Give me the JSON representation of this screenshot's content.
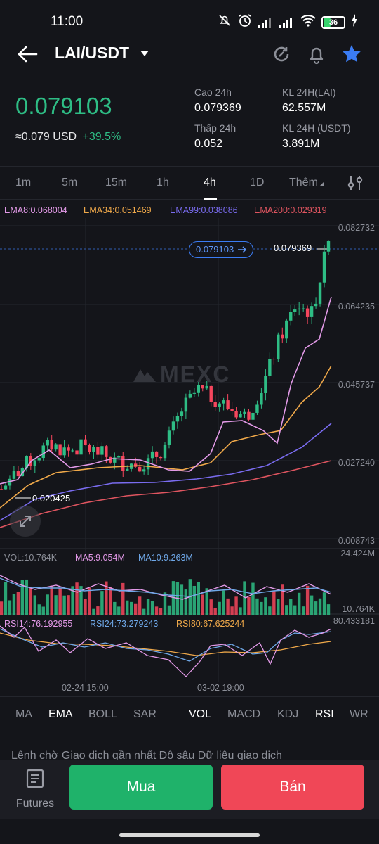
{
  "status_bar": {
    "time": "11:00",
    "battery": "36",
    "icons": [
      "mute-icon",
      "alarm-icon",
      "signal-icon",
      "signal-icon",
      "wifi-icon",
      "battery-icon",
      "charging-icon"
    ]
  },
  "header": {
    "pair": "LAI/USDT",
    "icons": [
      "back-arrow-icon",
      "chevron-down-icon",
      "refresh-icon",
      "bell-icon",
      "star-icon"
    ],
    "star_color": "#3b7cf3"
  },
  "price": {
    "last": "0.079103",
    "usd_approx": "≈0.079 USD",
    "change": "+39.5%",
    "up_color": "#2ebd85",
    "stats": {
      "high_label": "Cao 24h",
      "high_value": "0.079369",
      "low_label": "Thấp 24h",
      "low_value": "0.052",
      "vol_lai_label": "KL 24H(LAI)",
      "vol_lai_value": "62.557M",
      "vol_usdt_label": "KL 24H (USDT)",
      "vol_usdt_value": "3.891M"
    }
  },
  "intervals": {
    "items": [
      "1m",
      "5m",
      "15m",
      "1h",
      "4h",
      "1D",
      "Thêm"
    ],
    "active": "4h",
    "settings_icon": "sliders-icon"
  },
  "chart": {
    "ema_legend": [
      {
        "text": "EMA8:0.068004",
        "color": "#e39ae8"
      },
      {
        "text": "EMA34:0.051469",
        "color": "#f0a94a"
      },
      {
        "text": "EMA99:0.038086",
        "color": "#7a6cf0"
      },
      {
        "text": "EMA200:0.029319",
        "color": "#e05560"
      }
    ],
    "price_axis": [
      "0.082732",
      "0.064235",
      "0.045737",
      "0.027240",
      "0.008743"
    ],
    "current_price_tag": "0.079103",
    "high_marker": "0.079369",
    "low_marker": "0.020425",
    "watermark": "MEXC",
    "volume": {
      "legend": [
        {
          "text": "VOL:10.764K",
          "color": "#8c8f98"
        },
        {
          "text": "MA5:9.054M",
          "color": "#e39ae8"
        },
        {
          "text": "MA10:9.263M",
          "color": "#6fa8e8"
        }
      ],
      "axis_top": "24.424M",
      "axis_bottom": "10.764K"
    },
    "rsi": {
      "legend": [
        {
          "text": "RSI14:76.192955",
          "color": "#e39ae8"
        },
        {
          "text": "RSI24:73.279243",
          "color": "#6fa8e8"
        },
        {
          "text": "RSI80:67.625244",
          "color": "#f0a94a"
        }
      ],
      "axis_top": "80.433181"
    },
    "time_labels": [
      "02-24 15:00",
      "03-02 19:00"
    ]
  },
  "chart_data": {
    "type": "candlestick",
    "title": "",
    "interval": "4h",
    "ylim": [
      0.008743,
      0.082732
    ],
    "close_approx": [
      0.0205,
      0.0245,
      0.028,
      0.031,
      0.0295,
      0.0305,
      0.029,
      0.027,
      0.0265,
      0.0268,
      0.0305,
      0.039,
      0.044,
      0.042,
      0.0395,
      0.0375,
      0.045,
      0.056,
      0.064,
      0.062,
      0.0791
    ],
    "high": 0.079369,
    "low": 0.020425
  },
  "indicator_tabs": {
    "main": [
      "MA",
      "EMA",
      "BOLL",
      "SAR"
    ],
    "sub": [
      "VOL",
      "MACD",
      "KDJ",
      "RSI",
      "WR"
    ],
    "active_main": "EMA",
    "active_sub": [
      "VOL",
      "RSI"
    ]
  },
  "peek_text": "Lệnh chờ   Giao dịch gần nhất   Độ sâu   Dữ liệu giao dịch",
  "bottom": {
    "futures_label": "Futures",
    "buy_label": "Mua",
    "sell_label": "Bán",
    "buy_color": "#1fb26a",
    "sell_color": "#f04757"
  }
}
